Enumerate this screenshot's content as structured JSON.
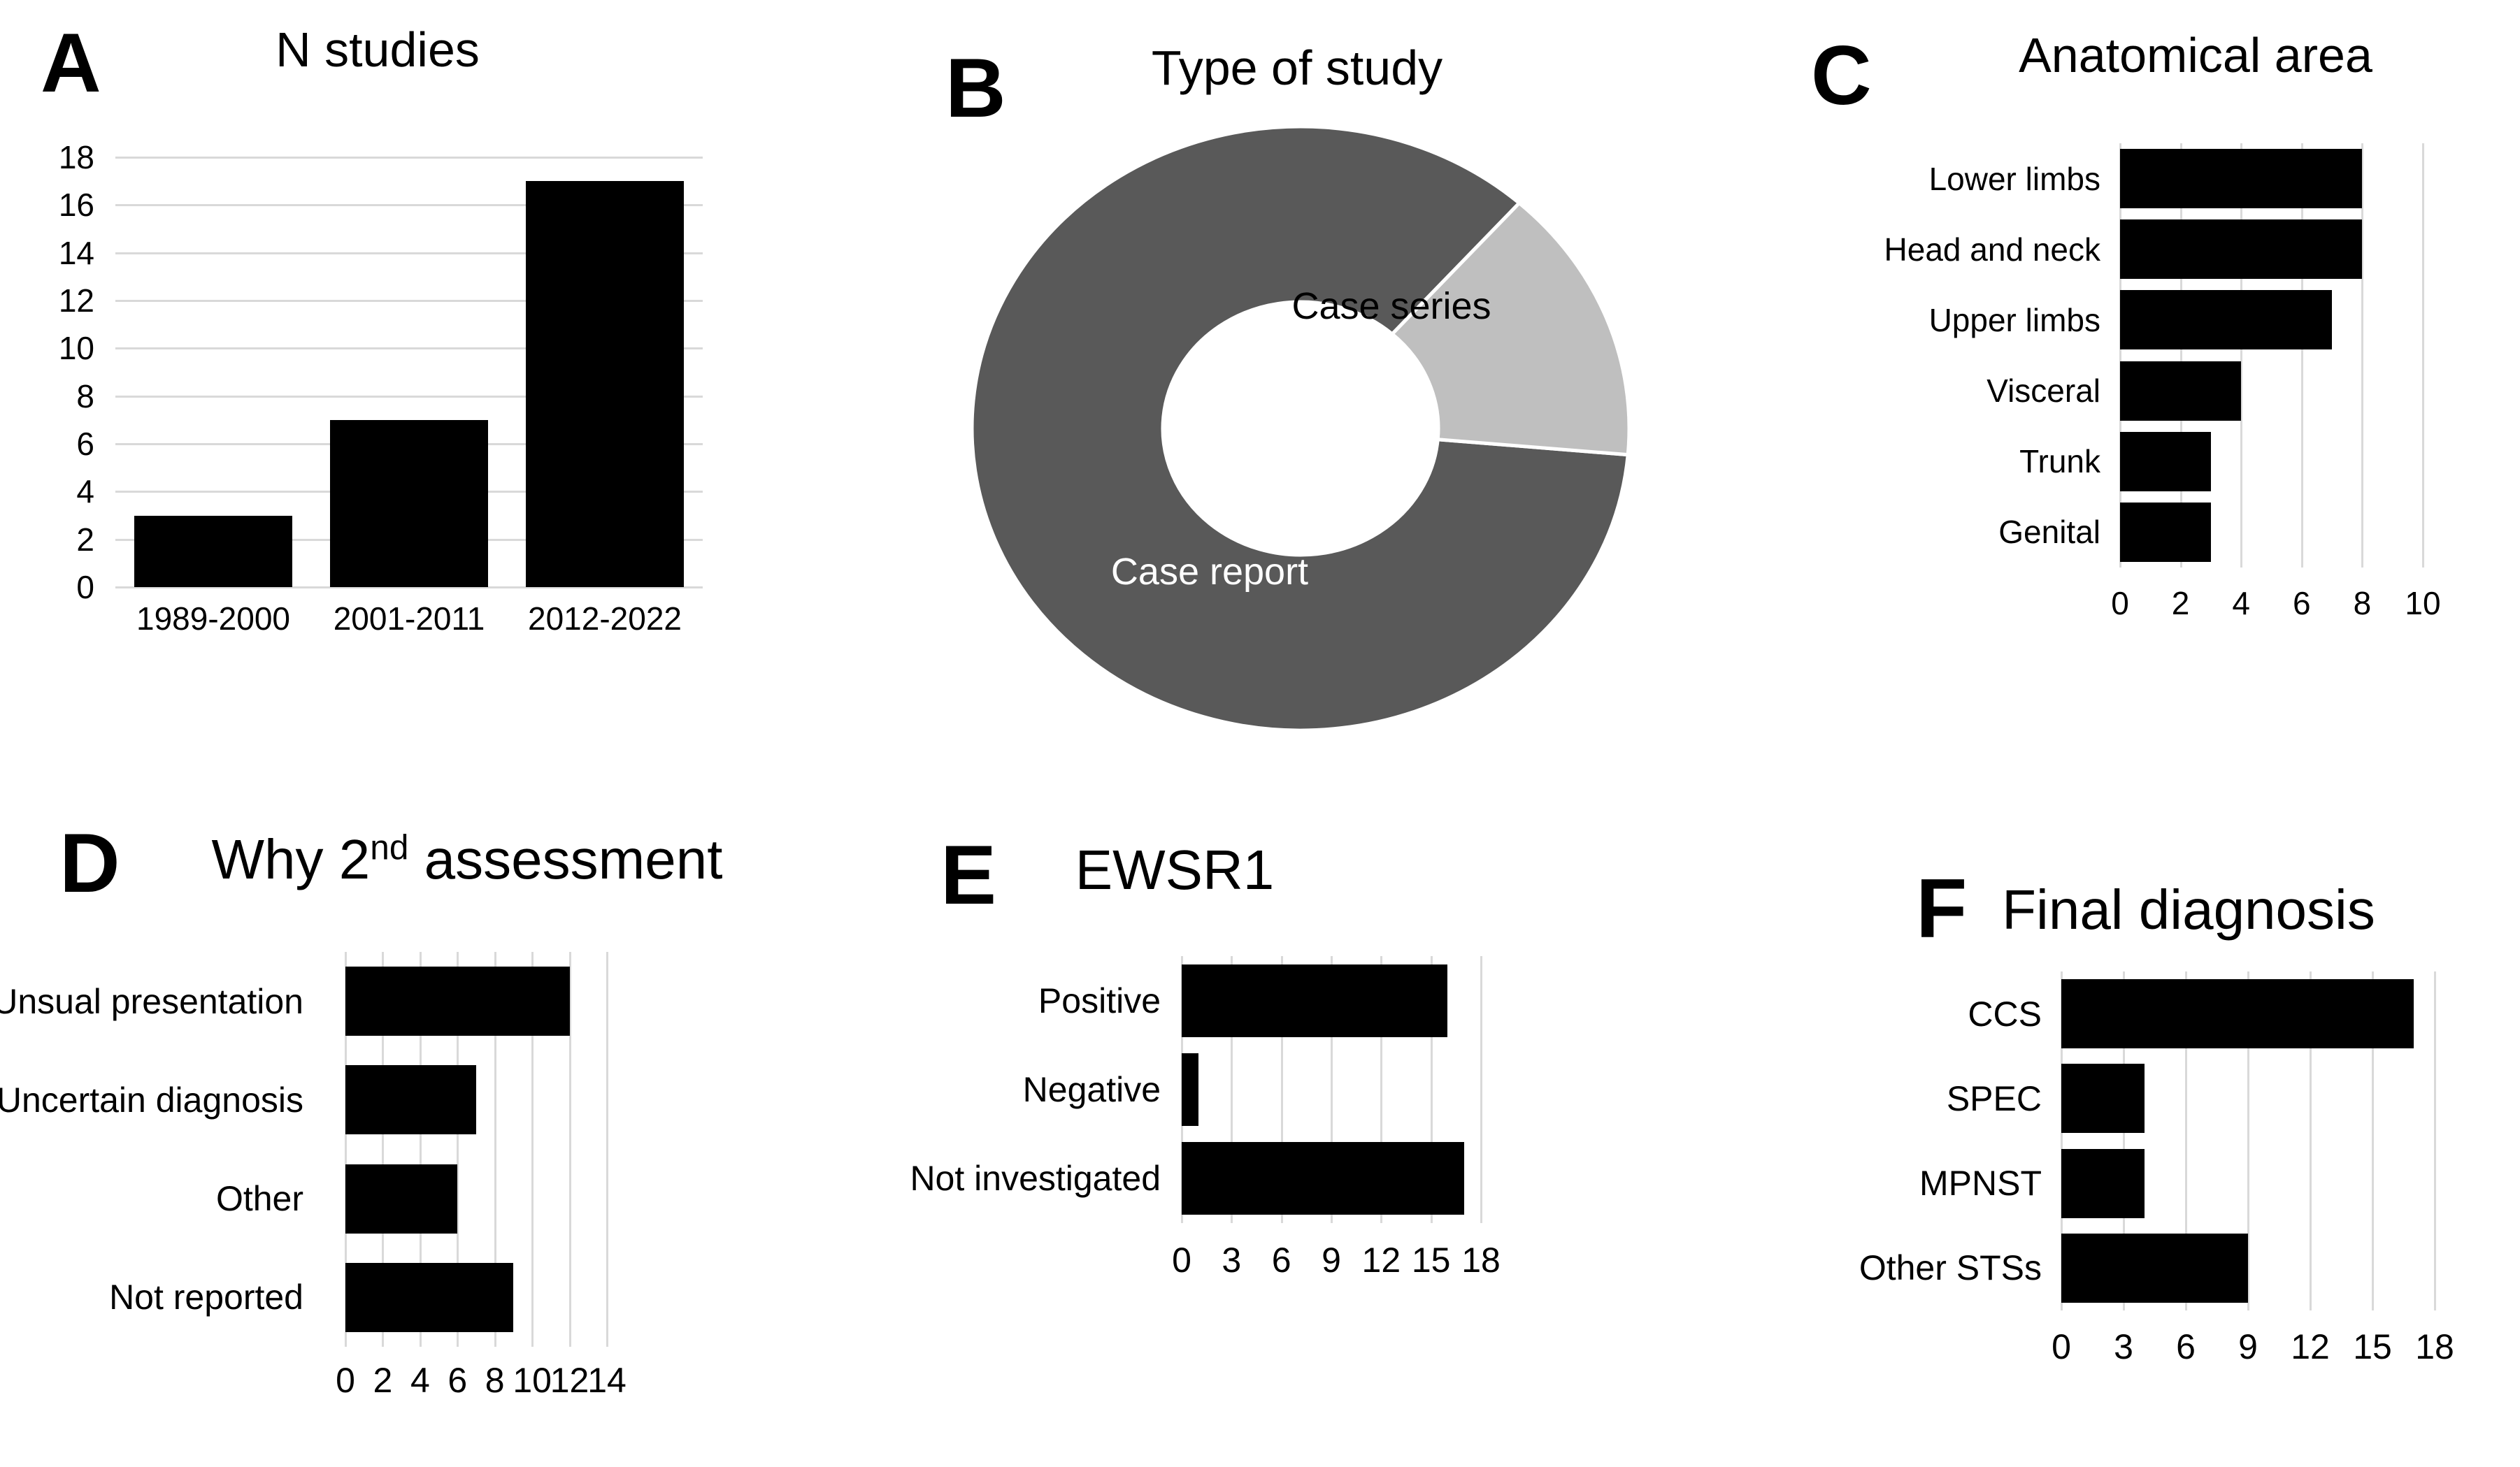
{
  "figure": {
    "background": "#ffffff",
    "bar_color": "#000000",
    "gridline_color": "#d9d9d9",
    "text_color": "#000000"
  },
  "chart_data": [
    {
      "panel_letter": "A",
      "type": "bar",
      "title": "N studies",
      "categories": [
        "1989-2000",
        "2001-2011",
        "2012-2022"
      ],
      "values": [
        3,
        7,
        17
      ],
      "ylim": [
        0,
        18
      ],
      "ytick_step": 2,
      "grid": true,
      "legend": "none",
      "bar_color": "#000000"
    },
    {
      "panel_letter": "B",
      "type": "pie",
      "title": "Type of study",
      "donut": true,
      "rotation_deg": 95,
      "slices": [
        {
          "label": "Case report",
          "percent": 85.2,
          "color": "#595959",
          "label_color": "#ffffff"
        },
        {
          "label": "Case series",
          "percent": 14.8,
          "color": "#bfbfbf",
          "label_color": "#000000"
        }
      ]
    },
    {
      "panel_letter": "C",
      "type": "hbar",
      "title": "Anatomical area",
      "categories": [
        "Lower limbs",
        "Head and neck",
        "Upper limbs",
        "Visceral",
        "Trunk",
        "Genital"
      ],
      "values": [
        8,
        8,
        7,
        4,
        3,
        3
      ],
      "xlim": [
        0,
        10
      ],
      "xticks": [
        0,
        2,
        4,
        6,
        8,
        10
      ],
      "grid": true,
      "bar_color": "#000000"
    },
    {
      "panel_letter": "D",
      "type": "hbar",
      "title": "Why 2nd assessment",
      "title_parts": {
        "pre": "Why 2",
        "sup": "nd",
        "post": " assessment"
      },
      "categories": [
        "Unsual presentation",
        "Uncertain diagnosis",
        "Other",
        "Not reported"
      ],
      "values": [
        12,
        7,
        6,
        9
      ],
      "xlim": [
        0,
        14
      ],
      "xticks": [
        0,
        2,
        4,
        6,
        8,
        10,
        12,
        14
      ],
      "grid": true,
      "bar_color": "#000000"
    },
    {
      "panel_letter": "E",
      "type": "hbar",
      "title": "EWSR1",
      "categories": [
        "Positive",
        "Negative",
        "Not investigated"
      ],
      "values": [
        16,
        1,
        17
      ],
      "xlim": [
        0,
        18
      ],
      "xticks": [
        0,
        3,
        6,
        9,
        12,
        15,
        18
      ],
      "grid": true,
      "bar_color": "#000000"
    },
    {
      "panel_letter": "F",
      "type": "hbar",
      "title": "Final diagnosis",
      "categories": [
        "CCS",
        "SPEC",
        "MPNST",
        "Other STSs"
      ],
      "values": [
        17,
        4,
        4,
        9
      ],
      "xlim": [
        0,
        18
      ],
      "xticks": [
        0,
        3,
        6,
        9,
        12,
        15,
        18
      ],
      "grid": true,
      "bar_color": "#000000"
    }
  ]
}
